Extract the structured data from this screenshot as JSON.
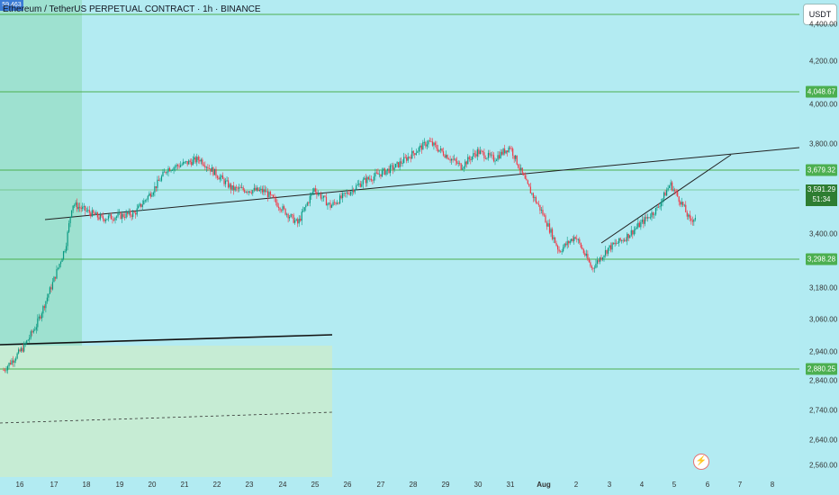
{
  "header": {
    "title": "Ethereum / TetherUS PERPETUAL CONTRACT · 1h · BINANCE",
    "corner_badge": "59.463",
    "currency": "USDT"
  },
  "y_axis": {
    "labels": [
      "4,200.00",
      "4,000.00",
      "3,800.00",
      "3,400.00",
      "3,180.00",
      "3,060.00",
      "2,940.00",
      "2,840.00",
      "2,740.00",
      "2,640.00",
      "2,560.00"
    ],
    "partial_top_label": "4,400.00"
  },
  "price_levels": {
    "labels": [
      "4,048.67",
      "3,679.32",
      "3,298.28",
      "2,880.25"
    ],
    "color": "#4caf50"
  },
  "current_price": {
    "value": "3,591.29",
    "countdown": "51:34",
    "color": "#2e7d32"
  },
  "x_axis": {
    "labels": [
      "16",
      "17",
      "18",
      "19",
      "20",
      "21",
      "22",
      "23",
      "24",
      "25",
      "26",
      "27",
      "28",
      "29",
      "30",
      "31",
      "Aug",
      "2",
      "3",
      "4",
      "5",
      "6",
      "7",
      "8"
    ]
  },
  "colors": {
    "up": "#089981",
    "down": "#f23645",
    "background": "#b3ebf2",
    "level_line": "#4caf50"
  },
  "chart_data": {
    "type": "candlestick",
    "symbol": "ETHUSDT.P",
    "interval": "1h",
    "close_path": [
      [
        0.0,
        2970
      ],
      [
        0.6,
        3060
      ],
      [
        1.0,
        3150
      ],
      [
        1.5,
        3320
      ],
      [
        1.9,
        3470
      ],
      [
        2.1,
        3640
      ],
      [
        3.0,
        3580
      ],
      [
        4.0,
        3600
      ],
      [
        4.6,
        3700
      ],
      [
        5.0,
        3780
      ],
      [
        6.0,
        3820
      ],
      [
        7.0,
        3700
      ],
      [
        8.0,
        3690
      ],
      [
        8.6,
        3610
      ],
      [
        9.0,
        3560
      ],
      [
        9.5,
        3700
      ],
      [
        10.0,
        3630
      ],
      [
        10.5,
        3680
      ],
      [
        11.0,
        3730
      ],
      [
        12.0,
        3790
      ],
      [
        13.0,
        3890
      ],
      [
        13.5,
        3840
      ],
      [
        14.0,
        3790
      ],
      [
        14.5,
        3850
      ],
      [
        15.0,
        3820
      ],
      [
        15.5,
        3870
      ],
      [
        16.0,
        3720
      ],
      [
        16.5,
        3600
      ],
      [
        17.0,
        3450
      ],
      [
        17.5,
        3510
      ],
      [
        18.0,
        3380
      ],
      [
        18.5,
        3460
      ],
      [
        19.0,
        3500
      ],
      [
        19.5,
        3560
      ],
      [
        20.0,
        3620
      ],
      [
        20.4,
        3720
      ],
      [
        20.8,
        3630
      ],
      [
        21.0,
        3570
      ],
      [
        21.2,
        3590
      ]
    ],
    "ylim": [
      2540,
      4460
    ],
    "x_start_label": "16",
    "x_unit": "day (1 unit = 1 day starting at 16)"
  }
}
